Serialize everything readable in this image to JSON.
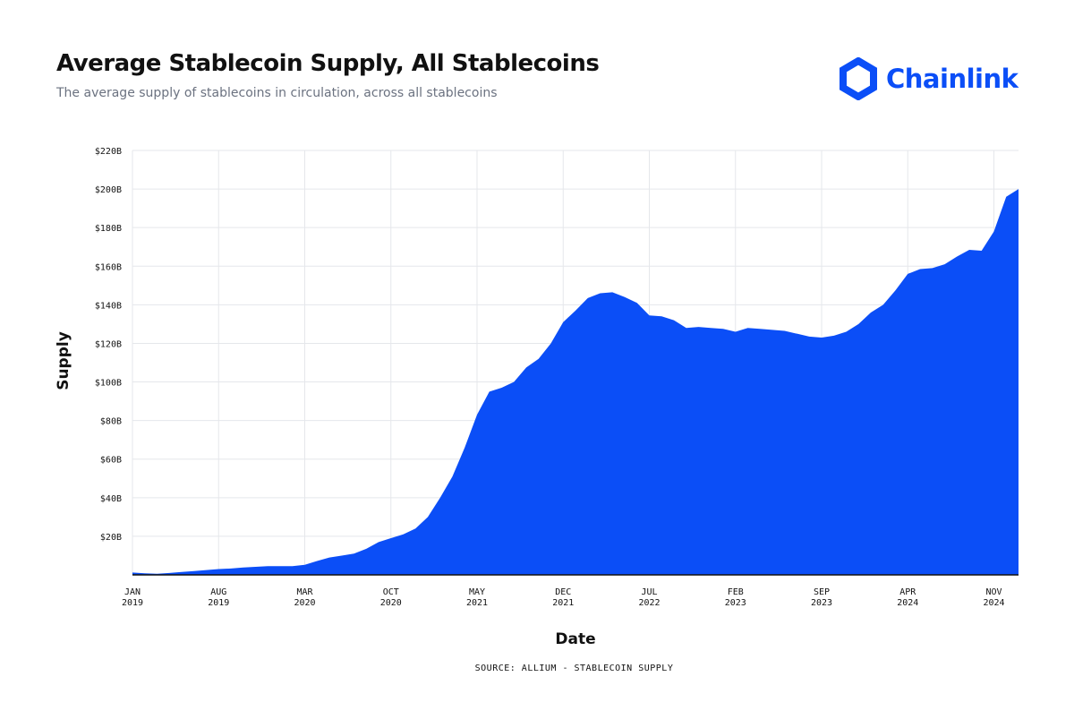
{
  "header": {
    "title": "Average Stablecoin Supply, All Stablecoins",
    "subtitle": "The average supply of stablecoins in circulation, across all stablecoins"
  },
  "brand": {
    "name": "Chainlink",
    "color": "#0b4ef7",
    "icon": "chainlink-hexagon-icon"
  },
  "source": "SOURCE: ALLIUM - STABLECOIN SUPPLY",
  "chart_data": {
    "type": "area",
    "title": "Average Stablecoin Supply, All Stablecoins",
    "subtitle": "The average supply of stablecoins in circulation, across all stablecoins",
    "xlabel": "Date",
    "ylabel": "Supply",
    "color": "#0b4ef7",
    "grid": true,
    "ylim": [
      0,
      220
    ],
    "xlim": [
      "2019-01",
      "2025-01"
    ],
    "yticks": [
      {
        "value": 20,
        "label": "$20B"
      },
      {
        "value": 40,
        "label": "$40B"
      },
      {
        "value": 60,
        "label": "$60B"
      },
      {
        "value": 80,
        "label": "$80B"
      },
      {
        "value": 100,
        "label": "$100B"
      },
      {
        "value": 120,
        "label": "$120B"
      },
      {
        "value": 140,
        "label": "$140B"
      },
      {
        "value": 160,
        "label": "$160B"
      },
      {
        "value": 180,
        "label": "$180B"
      },
      {
        "value": 200,
        "label": "$200B"
      },
      {
        "value": 220,
        "label": "$220B"
      }
    ],
    "xticks": [
      {
        "date": "2019-01",
        "month": "JAN",
        "year": "2019"
      },
      {
        "date": "2019-08",
        "month": "AUG",
        "year": "2019"
      },
      {
        "date": "2020-03",
        "month": "MAR",
        "year": "2020"
      },
      {
        "date": "2020-10",
        "month": "OCT",
        "year": "2020"
      },
      {
        "date": "2021-05",
        "month": "MAY",
        "year": "2021"
      },
      {
        "date": "2021-12",
        "month": "DEC",
        "year": "2021"
      },
      {
        "date": "2022-07",
        "month": "JUL",
        "year": "2022"
      },
      {
        "date": "2023-02",
        "month": "FEB",
        "year": "2023"
      },
      {
        "date": "2023-09",
        "month": "SEP",
        "year": "2023"
      },
      {
        "date": "2024-04",
        "month": "APR",
        "year": "2024"
      },
      {
        "date": "2024-11",
        "month": "NOV",
        "year": "2024"
      }
    ],
    "x": [
      "2019-01",
      "2019-02",
      "2019-03",
      "2019-04",
      "2019-05",
      "2019-06",
      "2019-07",
      "2019-08",
      "2019-09",
      "2019-10",
      "2019-11",
      "2019-12",
      "2020-01",
      "2020-02",
      "2020-03",
      "2020-04",
      "2020-05",
      "2020-06",
      "2020-07",
      "2020-08",
      "2020-09",
      "2020-10",
      "2020-11",
      "2020-12",
      "2021-01",
      "2021-02",
      "2021-03",
      "2021-04",
      "2021-05",
      "2021-06",
      "2021-07",
      "2021-08",
      "2021-09",
      "2021-10",
      "2021-11",
      "2021-12",
      "2022-01",
      "2022-02",
      "2022-03",
      "2022-04",
      "2022-05",
      "2022-06",
      "2022-07",
      "2022-08",
      "2022-09",
      "2022-10",
      "2022-11",
      "2022-12",
      "2023-01",
      "2023-02",
      "2023-03",
      "2023-04",
      "2023-05",
      "2023-06",
      "2023-07",
      "2023-08",
      "2023-09",
      "2023-10",
      "2023-11",
      "2023-12",
      "2024-01",
      "2024-02",
      "2024-03",
      "2024-04",
      "2024-05",
      "2024-06",
      "2024-07",
      "2024-08",
      "2024-09",
      "2024-10",
      "2024-11",
      "2024-12",
      "2025-01"
    ],
    "values": [
      1.2,
      0.8,
      0.6,
      1.0,
      1.5,
      2.0,
      2.5,
      3.0,
      3.3,
      3.8,
      4.2,
      4.5,
      4.5,
      4.5,
      5.2,
      7.2,
      9.0,
      10.0,
      11.0,
      13.5,
      17.0,
      19.0,
      21.0,
      24.0,
      30.0,
      40.0,
      51.0,
      66.0,
      83.0,
      95.0,
      97.0,
      100.0,
      107.5,
      112.0,
      120.0,
      131.0,
      137.0,
      143.5,
      146.0,
      146.5,
      144.0,
      141.0,
      134.5,
      134.0,
      132.0,
      128.0,
      128.5,
      128.0,
      127.5,
      126.0,
      128.0,
      127.5,
      127.0,
      126.5,
      125.0,
      123.5,
      123.0,
      124.0,
      126.0,
      130.0,
      136.0,
      140.0,
      147.5,
      156.0,
      158.5,
      159.0,
      161.0,
      165.0,
      168.5,
      168.0,
      178.0,
      196.0,
      200.0
    ]
  }
}
